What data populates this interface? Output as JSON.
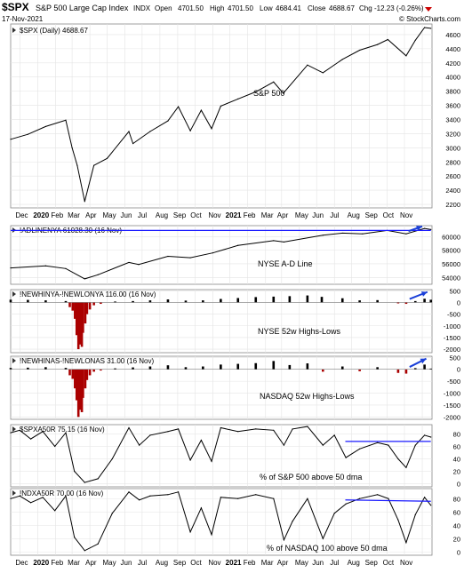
{
  "header": {
    "symbol": "$SPX",
    "name": "S&P 500 Large Cap Index",
    "exchange": "INDX",
    "date": "17-Nov-2021",
    "open_label": "Open",
    "open": "4701.50",
    "high_label": "High",
    "high": "4701.50",
    "low_label": "Low",
    "low": "4684.41",
    "close_label": "Close",
    "close": "4688.67",
    "chg_label": "Chg",
    "chg": "-12.23 (-0.26%)",
    "watermark": "© StockCharts.com"
  },
  "colors": {
    "line": "#000000",
    "trend": "#1a1aff",
    "arrow": "#1a3fd8",
    "neg_bar": "#aa0000",
    "pos_bar": "#000000",
    "grid": "#e4e4e4",
    "frame": "#888888"
  },
  "x_axis_top": [
    "Dec",
    "2020",
    "Feb",
    "Mar",
    "Apr",
    "May",
    "Jun",
    "Jul",
    "Aug",
    "Sep",
    "Oct",
    "Nov",
    "2021",
    "Feb",
    "Mar",
    "Apr",
    "May",
    "Jun",
    "Jul",
    "Aug",
    "Sep",
    "Oct",
    "Nov"
  ],
  "x_axis_bottom": [
    "Dec",
    "2020",
    "Feb",
    "Mar",
    "Apr",
    "May",
    "Jun",
    "Jul",
    "Aug",
    "Sep",
    "Oct",
    "Nov",
    "2021",
    "Feb",
    "Mar",
    "Apr",
    "May",
    "Jun",
    "Jul",
    "Aug",
    "Sep",
    "Oct",
    "Nov"
  ],
  "chart_data": [
    {
      "type": "line",
      "legend": "$SPX (Daily) 4688.67",
      "annotation": "S&P 500",
      "y_ticks": [
        "2200",
        "2400",
        "2600",
        "2800",
        "3000",
        "3200",
        "3400",
        "3600",
        "3800",
        "4000",
        "4200",
        "4400",
        "4600"
      ],
      "ylim": [
        2150,
        4750
      ],
      "x": [
        "2019-11-15",
        "2019-12-15",
        "2020-01-15",
        "2020-02-19",
        "2020-03-01",
        "2020-03-10",
        "2020-03-23",
        "2020-04-08",
        "2020-05-01",
        "2020-06-08",
        "2020-06-15",
        "2020-07-15",
        "2020-08-15",
        "2020-09-02",
        "2020-09-23",
        "2020-10-12",
        "2020-10-30",
        "2020-11-15",
        "2020-12-15",
        "2021-01-15",
        "2021-02-15",
        "2021-03-04",
        "2021-04-15",
        "2021-05-12",
        "2021-06-15",
        "2021-07-15",
        "2021-08-15",
        "2021-09-02",
        "2021-10-04",
        "2021-10-20",
        "2021-11-05",
        "2021-11-16"
      ],
      "y": [
        3120,
        3190,
        3300,
        3390,
        3000,
        2750,
        2240,
        2750,
        2850,
        3230,
        3060,
        3230,
        3380,
        3580,
        3240,
        3530,
        3270,
        3590,
        3690,
        3790,
        3930,
        3770,
        4170,
        4060,
        4250,
        4380,
        4460,
        4530,
        4300,
        4520,
        4700,
        4688
      ]
    },
    {
      "type": "line",
      "legend": "!ADLINENYA 61028.30 (16 Nov)",
      "annotation": "NYSE A-D Line",
      "y_ticks": [
        "54000",
        "56000",
        "58000",
        "60000"
      ],
      "ylim": [
        53000,
        61600
      ],
      "x": [
        "2019-11-15",
        "2020-01-15",
        "2020-02-19",
        "2020-03-23",
        "2020-04-15",
        "2020-06-08",
        "2020-06-25",
        "2020-08-15",
        "2020-09-23",
        "2020-11-01",
        "2020-12-15",
        "2021-02-15",
        "2021-03-05",
        "2021-05-12",
        "2021-06-15",
        "2021-07-20",
        "2021-09-01",
        "2021-10-04",
        "2021-11-05",
        "2021-11-16"
      ],
      "y": [
        55400,
        55700,
        55300,
        53800,
        54400,
        56200,
        55900,
        57100,
        56900,
        57600,
        58700,
        59400,
        59200,
        60200,
        60500,
        60400,
        60900,
        60400,
        61200,
        61028
      ],
      "trend_line": {
        "x": [
          "2019-11-15",
          "2021-11-16"
        ],
        "y": [
          60900,
          60900
        ]
      },
      "arrow": {
        "x": [
          "2021-10-08",
          "2021-11-01"
        ],
        "y": [
          60800,
          61500
        ]
      }
    },
    {
      "type": "bar",
      "legend": "!NEWHINYA-!NEWLONYA 116.00 (16 Nov)",
      "annotation": "NYSE 52w Highs-Lows",
      "y_ticks": [
        "-2000",
        "-1500",
        "-1000",
        "-500",
        "0",
        "500"
      ],
      "ylim": [
        -2150,
        550
      ],
      "x": [
        "2019-11-15",
        "2019-12-15",
        "2020-01-15",
        "2020-02-19",
        "2020-02-26",
        "2020-03-02",
        "2020-03-06",
        "2020-03-09",
        "2020-03-12",
        "2020-03-16",
        "2020-03-18",
        "2020-03-20",
        "2020-03-24",
        "2020-03-27",
        "2020-04-01",
        "2020-04-08",
        "2020-04-20",
        "2020-05-15",
        "2020-06-15",
        "2020-07-15",
        "2020-08-15",
        "2020-09-15",
        "2020-10-15",
        "2020-11-15",
        "2020-12-15",
        "2021-01-15",
        "2021-02-15",
        "2021-03-15",
        "2021-04-15",
        "2021-05-10",
        "2021-06-15",
        "2021-07-15",
        "2021-08-15",
        "2021-09-20",
        "2021-10-04",
        "2021-10-20",
        "2021-11-05",
        "2021-11-16"
      ],
      "values": [
        120,
        110,
        90,
        60,
        -200,
        -350,
        -700,
        -1400,
        -2000,
        -1800,
        -1900,
        -1300,
        -900,
        -500,
        -300,
        -120,
        -60,
        40,
        60,
        90,
        130,
        80,
        90,
        150,
        190,
        230,
        250,
        270,
        300,
        240,
        180,
        90,
        100,
        -40,
        -60,
        60,
        160,
        116
      ],
      "arrow": {
        "x": [
          "2021-10-10",
          "2021-11-10"
        ],
        "y": [
          150,
          450
        ]
      }
    },
    {
      "type": "bar",
      "legend": "!NEWHINAS-!NEWLONAS 31.00 (16 Nov)",
      "annotation": "NASDAQ 52w Highs-Lows",
      "y_ticks": [
        "-2000",
        "-1500",
        "-1000",
        "-500",
        "0",
        "500"
      ],
      "ylim": [
        -2100,
        550
      ],
      "x": [
        "2019-11-15",
        "2019-12-15",
        "2020-01-15",
        "2020-02-19",
        "2020-02-26",
        "2020-03-02",
        "2020-03-06",
        "2020-03-09",
        "2020-03-12",
        "2020-03-16",
        "2020-03-18",
        "2020-03-20",
        "2020-03-24",
        "2020-03-27",
        "2020-04-01",
        "2020-04-08",
        "2020-04-20",
        "2020-05-15",
        "2020-06-15",
        "2020-07-15",
        "2020-08-15",
        "2020-09-15",
        "2020-10-15",
        "2020-11-15",
        "2020-12-15",
        "2021-01-15",
        "2021-02-15",
        "2021-03-15",
        "2021-04-15",
        "2021-05-12",
        "2021-06-15",
        "2021-07-15",
        "2021-08-15",
        "2021-09-20",
        "2021-10-04",
        "2021-10-20",
        "2021-11-05",
        "2021-11-16"
      ],
      "values": [
        60,
        70,
        90,
        60,
        -250,
        -400,
        -800,
        -1300,
        -2000,
        -1700,
        -1800,
        -1200,
        -800,
        -450,
        -250,
        -100,
        -50,
        40,
        80,
        120,
        170,
        90,
        120,
        200,
        230,
        260,
        350,
        180,
        250,
        -100,
        120,
        -80,
        90,
        -150,
        -180,
        50,
        200,
        31
      ],
      "arrow": {
        "x": [
          "2021-10-10",
          "2021-11-08"
        ],
        "y": [
          100,
          450
        ]
      }
    },
    {
      "type": "line",
      "legend": "$SPXA50R 75.15 (16 Nov)",
      "annotation": "% of S&P 500 above 50 dma",
      "y_ticks": [
        "0",
        "20",
        "40",
        "60",
        "80"
      ],
      "ylim": [
        -5,
        95
      ],
      "x": [
        "2019-11-15",
        "2019-12-01",
        "2019-12-20",
        "2020-01-10",
        "2020-01-31",
        "2020-02-19",
        "2020-03-05",
        "2020-03-23",
        "2020-04-15",
        "2020-05-10",
        "2020-06-08",
        "2020-06-26",
        "2020-07-15",
        "2020-08-15",
        "2020-09-02",
        "2020-09-23",
        "2020-10-12",
        "2020-10-30",
        "2020-11-15",
        "2020-12-15",
        "2021-01-15",
        "2021-02-15",
        "2021-03-05",
        "2021-03-20",
        "2021-04-15",
        "2021-05-12",
        "2021-06-01",
        "2021-06-21",
        "2021-07-15",
        "2021-08-15",
        "2021-09-03",
        "2021-09-20",
        "2021-10-04",
        "2021-10-20",
        "2021-11-05",
        "2021-11-16"
      ],
      "y": [
        82,
        86,
        72,
        84,
        60,
        82,
        20,
        2,
        8,
        40,
        90,
        62,
        78,
        84,
        88,
        38,
        70,
        36,
        90,
        84,
        88,
        86,
        62,
        88,
        92,
        62,
        78,
        42,
        56,
        66,
        62,
        40,
        26,
        62,
        78,
        75
      ],
      "trend_line": {
        "x": [
          "2021-06-20",
          "2021-11-16"
        ],
        "y": [
          68,
          68
        ]
      }
    },
    {
      "type": "line",
      "legend": "!NDXA50R 70.00 (16 Nov)",
      "annotation": "% of NASDAQ 100 above 50 dma",
      "y_ticks": [
        "0",
        "20",
        "40",
        "60",
        "80"
      ],
      "ylim": [
        -5,
        95
      ],
      "x": [
        "2019-11-15",
        "2019-12-01",
        "2019-12-20",
        "2020-01-10",
        "2020-01-31",
        "2020-02-19",
        "2020-03-05",
        "2020-03-23",
        "2020-04-15",
        "2020-05-10",
        "2020-06-08",
        "2020-06-26",
        "2020-07-15",
        "2020-08-15",
        "2020-09-02",
        "2020-09-23",
        "2020-10-12",
        "2020-10-30",
        "2020-11-15",
        "2020-12-15",
        "2021-01-15",
        "2021-02-15",
        "2021-03-05",
        "2021-03-20",
        "2021-04-15",
        "2021-05-12",
        "2021-06-01",
        "2021-06-21",
        "2021-07-15",
        "2021-08-15",
        "2021-09-03",
        "2021-09-20",
        "2021-10-04",
        "2021-10-20",
        "2021-11-05",
        "2021-11-16"
      ],
      "y": [
        80,
        84,
        74,
        82,
        62,
        84,
        22,
        2,
        12,
        58,
        90,
        78,
        84,
        86,
        90,
        30,
        66,
        26,
        82,
        80,
        86,
        80,
        18,
        46,
        80,
        20,
        58,
        72,
        80,
        86,
        80,
        48,
        14,
        56,
        82,
        70
      ],
      "trend_line": {
        "x": [
          "2021-06-20",
          "2021-11-16"
        ],
        "y": [
          78,
          76
        ]
      }
    }
  ]
}
